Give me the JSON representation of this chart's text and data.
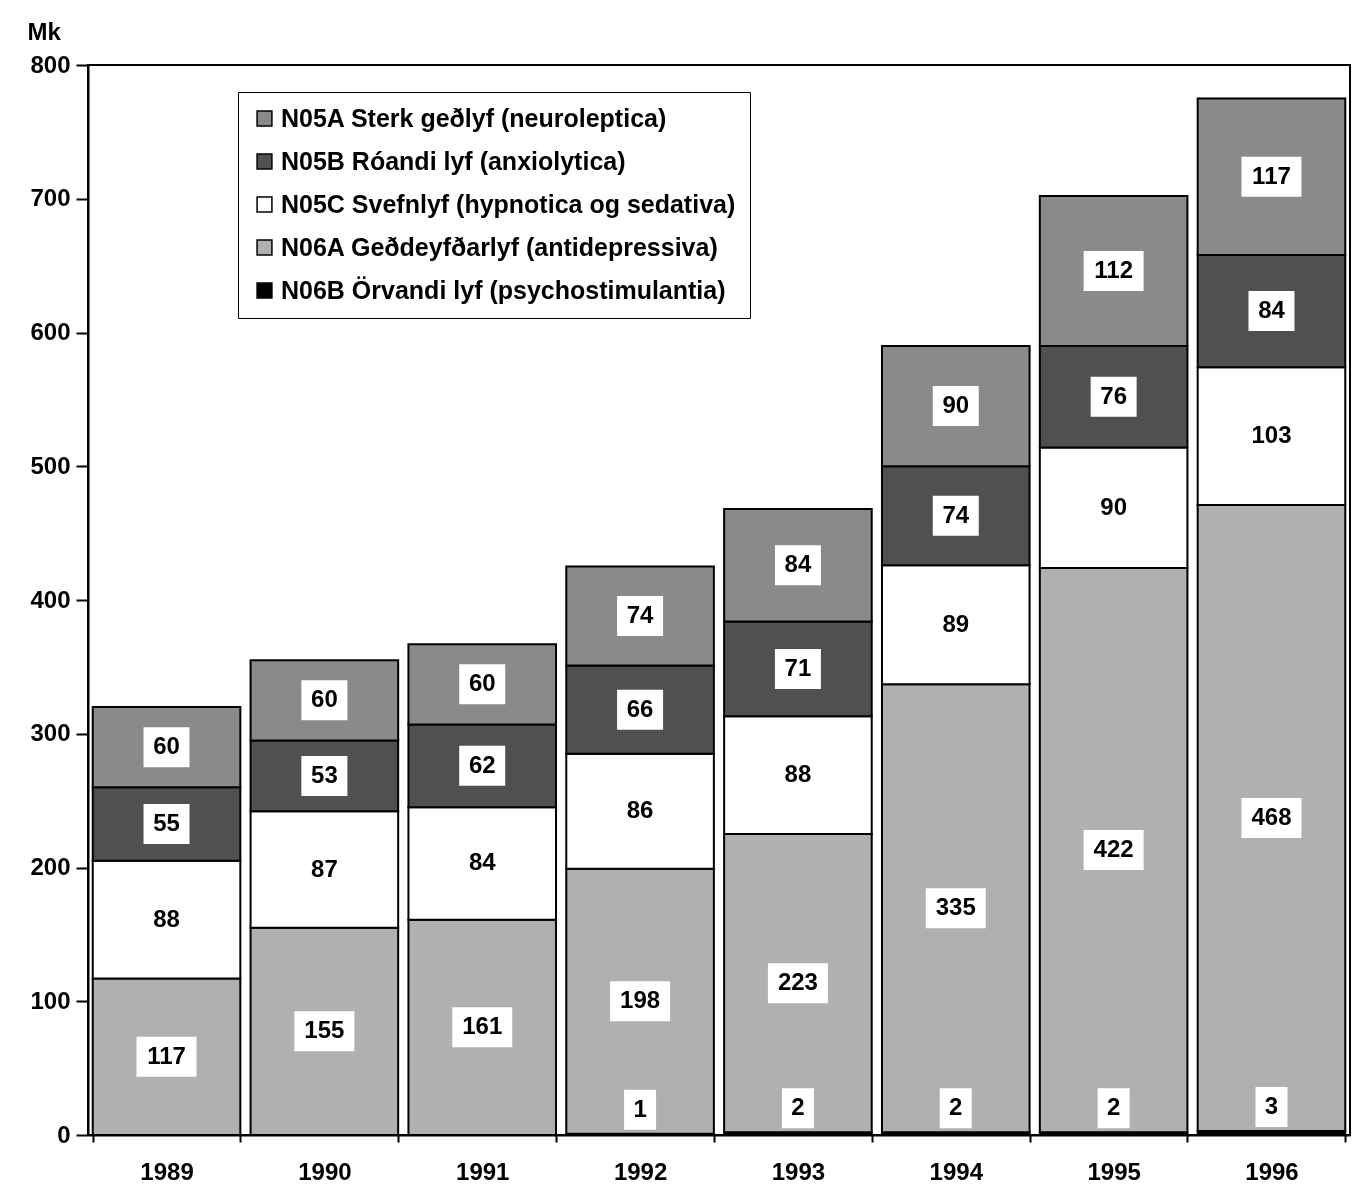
{
  "chart_data": {
    "type": "bar",
    "stacked": true,
    "ylabel": "Mk",
    "categories": [
      "1989",
      "1990",
      "1991",
      "1992",
      "1993",
      "1994",
      "1995",
      "1996"
    ],
    "ylim": [
      0,
      800
    ],
    "yticks": [
      0,
      100,
      200,
      300,
      400,
      500,
      600,
      700,
      800
    ],
    "legend": "top left",
    "data_labels": true,
    "series": [
      {
        "name": "N06B Örvandi lyf (psychostimulantia)",
        "color": "#000000",
        "values": [
          null,
          null,
          null,
          1,
          2,
          2,
          2,
          3
        ]
      },
      {
        "name": "N06A Geðdeyfðarlyf (antidepressiva)",
        "color": "#b0b0b0",
        "values": [
          117,
          155,
          161,
          198,
          223,
          335,
          422,
          468
        ]
      },
      {
        "name": "N05C Svefnlyf (hypnotica og sedativa)",
        "color": "#ffffff",
        "values": [
          88,
          87,
          84,
          86,
          88,
          89,
          90,
          103
        ]
      },
      {
        "name": "N05B Róandi lyf (anxiolytica)",
        "color": "#505050",
        "values": [
          55,
          53,
          62,
          66,
          71,
          74,
          76,
          84
        ]
      },
      {
        "name": "N05A Sterk geðlyf (neuroleptica)",
        "color": "#8a8a8a",
        "values": [
          60,
          60,
          60,
          74,
          84,
          90,
          112,
          117
        ]
      }
    ]
  }
}
